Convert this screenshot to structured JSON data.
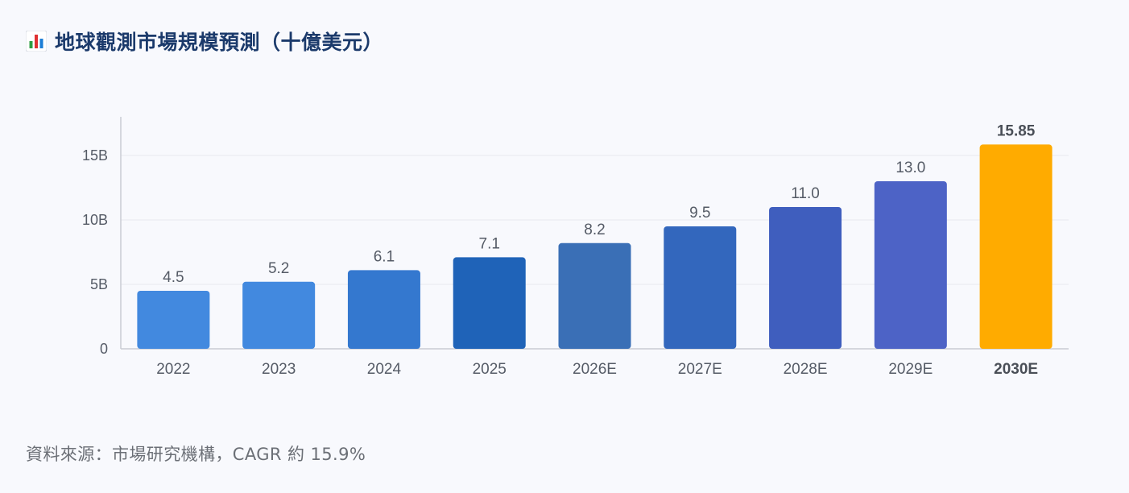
{
  "header": {
    "title": "地球觀測市場規模預測（十億美元）",
    "icon": "bar-chart-icon"
  },
  "footer": {
    "source_note": "資料來源：市場研究機構，CAGR 約 15.9%"
  },
  "colors": {
    "highlight": "#ffab00",
    "axis": "#c9ccd3",
    "grid": "#e7e9ef"
  },
  "chart_data": {
    "type": "bar",
    "title": "地球觀測市場規模預測（十億美元）",
    "xlabel": "",
    "ylabel": "",
    "ylim": [
      0,
      18
    ],
    "yticks": [
      {
        "value": 0,
        "label": "0"
      },
      {
        "value": 5,
        "label": "5B"
      },
      {
        "value": 10,
        "label": "10B"
      },
      {
        "value": 15,
        "label": "15B"
      }
    ],
    "grid": true,
    "categories": [
      "2022",
      "2023",
      "2024",
      "2025",
      "2026E",
      "2027E",
      "2028E",
      "2029E",
      "2030E"
    ],
    "values": [
      4.5,
      5.2,
      6.1,
      7.1,
      8.2,
      9.5,
      11.0,
      13.0,
      15.85
    ],
    "value_labels": [
      "4.5",
      "5.2",
      "6.1",
      "7.1",
      "8.2",
      "9.5",
      "11.0",
      "13.0",
      "15.85"
    ],
    "bar_colors": [
      "#4289df",
      "#4289df",
      "#3478cf",
      "#1f63b8",
      "#3a6fb6",
      "#3367bd",
      "#3f5ebe",
      "#4d63c6",
      "#ffab00"
    ],
    "highlight_index": 8
  }
}
